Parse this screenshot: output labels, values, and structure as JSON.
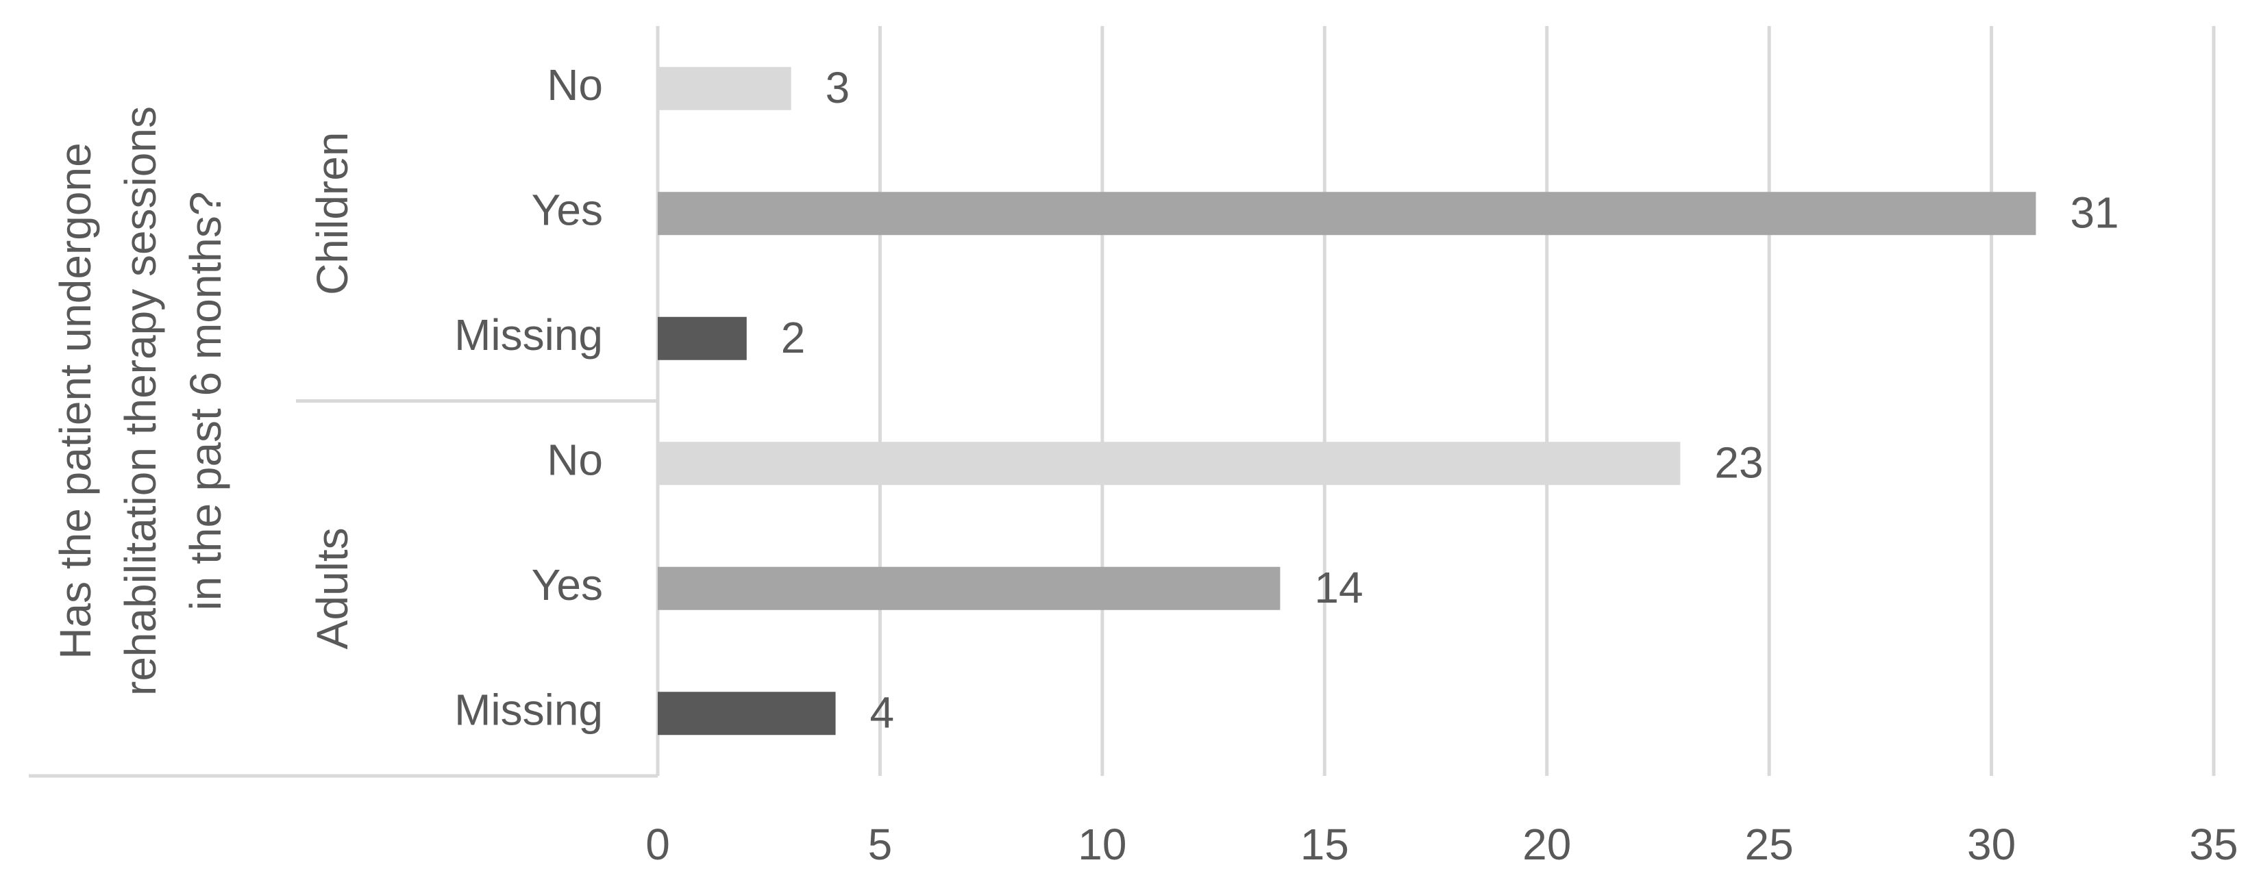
{
  "chart_data": {
    "type": "grouped-bar-horizontal",
    "y_label": "Has the patient undergone rehabilitation therapy sessions in the past 6 months?",
    "groups": [
      {
        "name": "Children",
        "categories": [
          "No",
          "Yes",
          "Missing"
        ],
        "values": [
          3,
          31,
          2
        ]
      },
      {
        "name": "Adults",
        "categories": [
          "No",
          "Yes",
          "Missing"
        ],
        "values": [
          23,
          14,
          4
        ]
      }
    ],
    "colors": [
      "#d9d9d9",
      "#a5a5a5",
      "#595959"
    ],
    "xlim": [
      0,
      35
    ],
    "xticks": [
      0,
      5,
      10,
      15,
      20,
      25,
      30,
      35
    ],
    "grid": true
  }
}
